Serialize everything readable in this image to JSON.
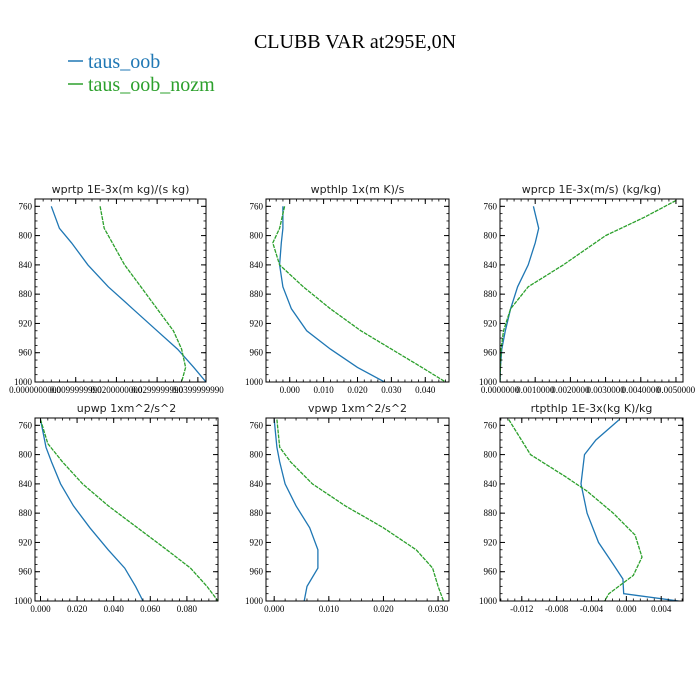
{
  "title": "CLUBB VAR at295E,0N",
  "legend": [
    {
      "label": "taus_oob",
      "color": "#1f77b4"
    },
    {
      "label": "taus_oob_nozm",
      "color": "#2ca02c"
    }
  ],
  "chart_data": [
    {
      "type": "line",
      "title": "wprtp  1E-3x(m kg)/(s kg)",
      "xlim": [
        0,
        0.042
      ],
      "ylim": [
        1000,
        750
      ],
      "xticks": [
        "0.0000000000",
        "0.0099999990",
        "0.0200000000",
        "0.0299999990",
        "0.0399999990"
      ],
      "xtick_values": [
        0,
        0.01,
        0.02,
        0.03,
        0.04
      ],
      "yticks": [
        760,
        800,
        840,
        880,
        920,
        960,
        1000
      ],
      "series": [
        {
          "name": "taus_oob",
          "color": "#1f77b4",
          "x": [
            0.004,
            0.006,
            0.009,
            0.013,
            0.018,
            0.024,
            0.03,
            0.035,
            0.039,
            0.042
          ],
          "y": [
            760,
            790,
            810,
            840,
            870,
            900,
            930,
            955,
            980,
            1000
          ]
        },
        {
          "name": "taus_oob_nozm",
          "color": "#2ca02c",
          "x": [
            0.016,
            0.017,
            0.019,
            0.022,
            0.026,
            0.03,
            0.034,
            0.036,
            0.037,
            0.036
          ],
          "y": [
            760,
            790,
            810,
            840,
            870,
            900,
            930,
            955,
            980,
            1000
          ]
        }
      ]
    },
    {
      "type": "line",
      "title": "wpthlp  1x(m K)/s",
      "xlim": [
        -0.007,
        0.047
      ],
      "ylim": [
        1000,
        750
      ],
      "xticks": [
        "0.000",
        "0.010",
        "0.020",
        "0.030",
        "0.040"
      ],
      "xtick_values": [
        0,
        0.01,
        0.02,
        0.03,
        0.04
      ],
      "yticks": [
        760,
        800,
        840,
        880,
        920,
        960,
        1000
      ],
      "series": [
        {
          "name": "taus_oob",
          "color": "#1f77b4",
          "x": [
            -0.002,
            -0.002,
            -0.0025,
            -0.003,
            -0.002,
            0.0005,
            0.005,
            0.012,
            0.02,
            0.028
          ],
          "y": [
            760,
            790,
            810,
            840,
            870,
            900,
            930,
            955,
            980,
            1000
          ]
        },
        {
          "name": "taus_oob_nozm",
          "color": "#2ca02c",
          "x": [
            -0.0015,
            -0.003,
            -0.005,
            -0.003,
            0.004,
            0.012,
            0.021,
            0.03,
            0.039,
            0.046
          ],
          "y": [
            760,
            790,
            810,
            840,
            870,
            900,
            930,
            955,
            980,
            1000
          ]
        }
      ]
    },
    {
      "type": "line",
      "title": "wprcp  1E-3x(m/s) (kg/kg)",
      "xlim": [
        0,
        0.0052
      ],
      "ylim": [
        1000,
        750
      ],
      "xticks": [
        "0.0000000",
        "0.0010000",
        "0.0020000",
        "0.0030000",
        "0.0040000",
        "0.0050000"
      ],
      "xtick_values": [
        0,
        0.001,
        0.002,
        0.003,
        0.004,
        0.005
      ],
      "yticks": [
        760,
        800,
        840,
        880,
        920,
        960,
        1000
      ],
      "series": [
        {
          "name": "taus_oob",
          "color": "#1f77b4",
          "x": [
            0.00095,
            0.0011,
            0.001,
            0.0008,
            0.0005,
            0.0003,
            0.00015,
            5e-05,
            1e-05,
            0.0
          ],
          "y": [
            760,
            790,
            810,
            840,
            870,
            900,
            930,
            955,
            980,
            1000
          ]
        },
        {
          "name": "taus_oob_nozm",
          "color": "#2ca02c",
          "x": [
            0.005,
            0.0041,
            0.003,
            0.0018,
            0.0008,
            0.0003,
            0.0001,
            3e-05,
            1e-05,
            0.0
          ],
          "y": [
            752,
            775,
            800,
            840,
            870,
            900,
            930,
            955,
            980,
            1000
          ]
        }
      ]
    },
    {
      "type": "line",
      "title": "upwp  1xm^2/s^2",
      "xlim": [
        -0.003,
        0.097
      ],
      "ylim": [
        1000,
        750
      ],
      "xticks": [
        "0.000",
        "0.020",
        "0.040",
        "0.060",
        "0.080"
      ],
      "xtick_values": [
        0,
        0.02,
        0.04,
        0.06,
        0.08
      ],
      "yticks": [
        760,
        800,
        840,
        880,
        920,
        960,
        1000
      ],
      "series": [
        {
          "name": "taus_oob",
          "color": "#1f77b4",
          "x": [
            0.0,
            0.003,
            0.006,
            0.011,
            0.018,
            0.027,
            0.037,
            0.046,
            0.052,
            0.056
          ],
          "y": [
            752,
            790,
            810,
            840,
            870,
            900,
            930,
            955,
            980,
            1000
          ]
        },
        {
          "name": "taus_oob_nozm",
          "color": "#2ca02c",
          "x": [
            0.0,
            0.004,
            0.012,
            0.023,
            0.037,
            0.053,
            0.069,
            0.082,
            0.091,
            0.097
          ],
          "y": [
            752,
            785,
            810,
            840,
            870,
            900,
            930,
            955,
            980,
            1000
          ]
        }
      ]
    },
    {
      "type": "line",
      "title": "vpwp  1xm^2/s^2",
      "xlim": [
        -0.0015,
        0.032
      ],
      "ylim": [
        1000,
        750
      ],
      "xticks": [
        "0.000",
        "0.010",
        "0.020",
        "0.030"
      ],
      "xtick_values": [
        0,
        0.01,
        0.02,
        0.03
      ],
      "yticks": [
        760,
        800,
        840,
        880,
        920,
        960,
        1000
      ],
      "series": [
        {
          "name": "taus_oob",
          "color": "#1f77b4",
          "x": [
            0.0,
            0.0005,
            0.001,
            0.002,
            0.004,
            0.0065,
            0.008,
            0.008,
            0.006,
            0.0055
          ],
          "y": [
            752,
            790,
            810,
            840,
            870,
            900,
            930,
            955,
            980,
            1000
          ]
        },
        {
          "name": "taus_oob_nozm",
          "color": "#2ca02c",
          "x": [
            0.0005,
            0.001,
            0.003,
            0.007,
            0.013,
            0.02,
            0.026,
            0.029,
            0.03,
            0.031
          ],
          "y": [
            752,
            790,
            810,
            840,
            870,
            900,
            930,
            955,
            980,
            1000
          ]
        }
      ]
    },
    {
      "type": "line",
      "title": "rtpthlp  1E-3x(kg K)/kg",
      "xlim": [
        -0.0145,
        0.0065
      ],
      "ylim": [
        1000,
        750
      ],
      "xticks": [
        "-0.012",
        "-0.008",
        "-0.004",
        "0.000",
        "0.004"
      ],
      "xtick_values": [
        -0.012,
        -0.008,
        -0.004,
        0,
        0.004
      ],
      "yticks": [
        760,
        800,
        840,
        880,
        920,
        960,
        1000
      ],
      "series": [
        {
          "name": "taus_oob",
          "color": "#1f77b4",
          "x": [
            -0.0008,
            -0.0035,
            -0.0048,
            -0.0052,
            -0.0045,
            -0.0032,
            -0.0015,
            -0.0004,
            -0.0003,
            0.006
          ],
          "y": [
            752,
            780,
            800,
            840,
            880,
            920,
            950,
            970,
            990,
            1000
          ]
        },
        {
          "name": "taus_oob_nozm",
          "color": "#2ca02c",
          "x": [
            -0.0135,
            -0.011,
            -0.007,
            -0.0045,
            -0.0015,
            0.001,
            0.0018,
            0.0008,
            -0.002,
            -0.0025
          ],
          "y": [
            752,
            800,
            830,
            850,
            880,
            910,
            940,
            965,
            990,
            1000
          ]
        }
      ]
    }
  ]
}
